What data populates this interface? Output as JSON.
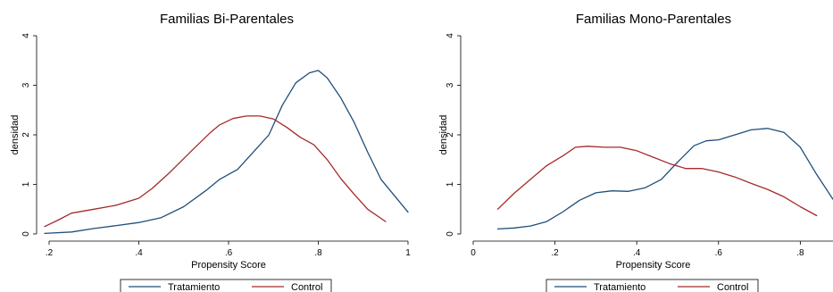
{
  "chart_data": [
    {
      "type": "line",
      "title": "Familias Bi-Parentales",
      "xlabel": "Propensity Score",
      "ylabel": "densidad",
      "xlim": [
        0.2,
        1.0
      ],
      "ylim": [
        0,
        4
      ],
      "xticks": [
        0.2,
        0.4,
        0.6,
        0.8,
        1.0
      ],
      "xtick_labels": [
        ".2",
        ".4",
        ".6",
        ".8",
        "1"
      ],
      "yticks": [
        0,
        1,
        2,
        3,
        4
      ],
      "ytick_labels": [
        "0",
        "1",
        "2",
        "3",
        "4"
      ],
      "grid": false,
      "legend_position": "bottom",
      "series": [
        {
          "name": "Tratamiento",
          "color": "#1f4e79",
          "x": [
            0.19,
            0.25,
            0.3,
            0.35,
            0.4,
            0.45,
            0.5,
            0.55,
            0.58,
            0.62,
            0.66,
            0.69,
            0.72,
            0.75,
            0.78,
            0.8,
            0.82,
            0.85,
            0.88,
            0.91,
            0.94,
            1.0
          ],
          "y": [
            0.01,
            0.04,
            0.11,
            0.17,
            0.23,
            0.33,
            0.55,
            0.88,
            1.1,
            1.3,
            1.7,
            2.0,
            2.6,
            3.05,
            3.25,
            3.3,
            3.15,
            2.75,
            2.25,
            1.65,
            1.1,
            0.44
          ]
        },
        {
          "name": "Control",
          "color": "#a52a2a",
          "x": [
            0.19,
            0.22,
            0.25,
            0.3,
            0.35,
            0.4,
            0.43,
            0.47,
            0.52,
            0.56,
            0.58,
            0.61,
            0.64,
            0.67,
            0.7,
            0.73,
            0.76,
            0.79,
            0.82,
            0.85,
            0.88,
            0.91,
            0.95
          ],
          "y": [
            0.15,
            0.28,
            0.42,
            0.5,
            0.58,
            0.72,
            0.92,
            1.25,
            1.7,
            2.05,
            2.2,
            2.33,
            2.38,
            2.38,
            2.32,
            2.15,
            1.95,
            1.8,
            1.5,
            1.12,
            0.8,
            0.5,
            0.25
          ]
        }
      ]
    },
    {
      "type": "line",
      "title": "Familias Mono-Parentales",
      "xlabel": "Propensity Score",
      "ylabel": "densidad",
      "xlim": [
        0,
        0.88
      ],
      "ylim": [
        0,
        4
      ],
      "xticks": [
        0,
        0.2,
        0.4,
        0.6,
        0.8
      ],
      "xtick_labels": [
        "0",
        ".2",
        ".4",
        ".6",
        ".8"
      ],
      "yticks": [
        0,
        1,
        2,
        3,
        4
      ],
      "ytick_labels": [
        "0",
        "1",
        "2",
        "3",
        "4"
      ],
      "grid": false,
      "legend_position": "bottom",
      "series": [
        {
          "name": "Tratamiento",
          "color": "#1f4e79",
          "x": [
            0.06,
            0.1,
            0.14,
            0.18,
            0.22,
            0.26,
            0.3,
            0.34,
            0.38,
            0.42,
            0.46,
            0.5,
            0.54,
            0.57,
            0.6,
            0.64,
            0.68,
            0.72,
            0.76,
            0.8,
            0.84,
            0.88
          ],
          "y": [
            0.1,
            0.12,
            0.16,
            0.25,
            0.45,
            0.68,
            0.83,
            0.87,
            0.86,
            0.93,
            1.1,
            1.45,
            1.78,
            1.88,
            1.9,
            2.0,
            2.1,
            2.13,
            2.05,
            1.75,
            1.2,
            0.7
          ]
        },
        {
          "name": "Control",
          "color": "#a52a2a",
          "x": [
            0.06,
            0.1,
            0.14,
            0.18,
            0.22,
            0.25,
            0.28,
            0.32,
            0.36,
            0.4,
            0.44,
            0.48,
            0.52,
            0.56,
            0.6,
            0.64,
            0.68,
            0.72,
            0.76,
            0.8,
            0.84
          ],
          "y": [
            0.5,
            0.82,
            1.1,
            1.38,
            1.58,
            1.75,
            1.77,
            1.75,
            1.75,
            1.68,
            1.55,
            1.42,
            1.32,
            1.32,
            1.25,
            1.15,
            1.02,
            0.9,
            0.75,
            0.55,
            0.37
          ]
        }
      ]
    }
  ]
}
